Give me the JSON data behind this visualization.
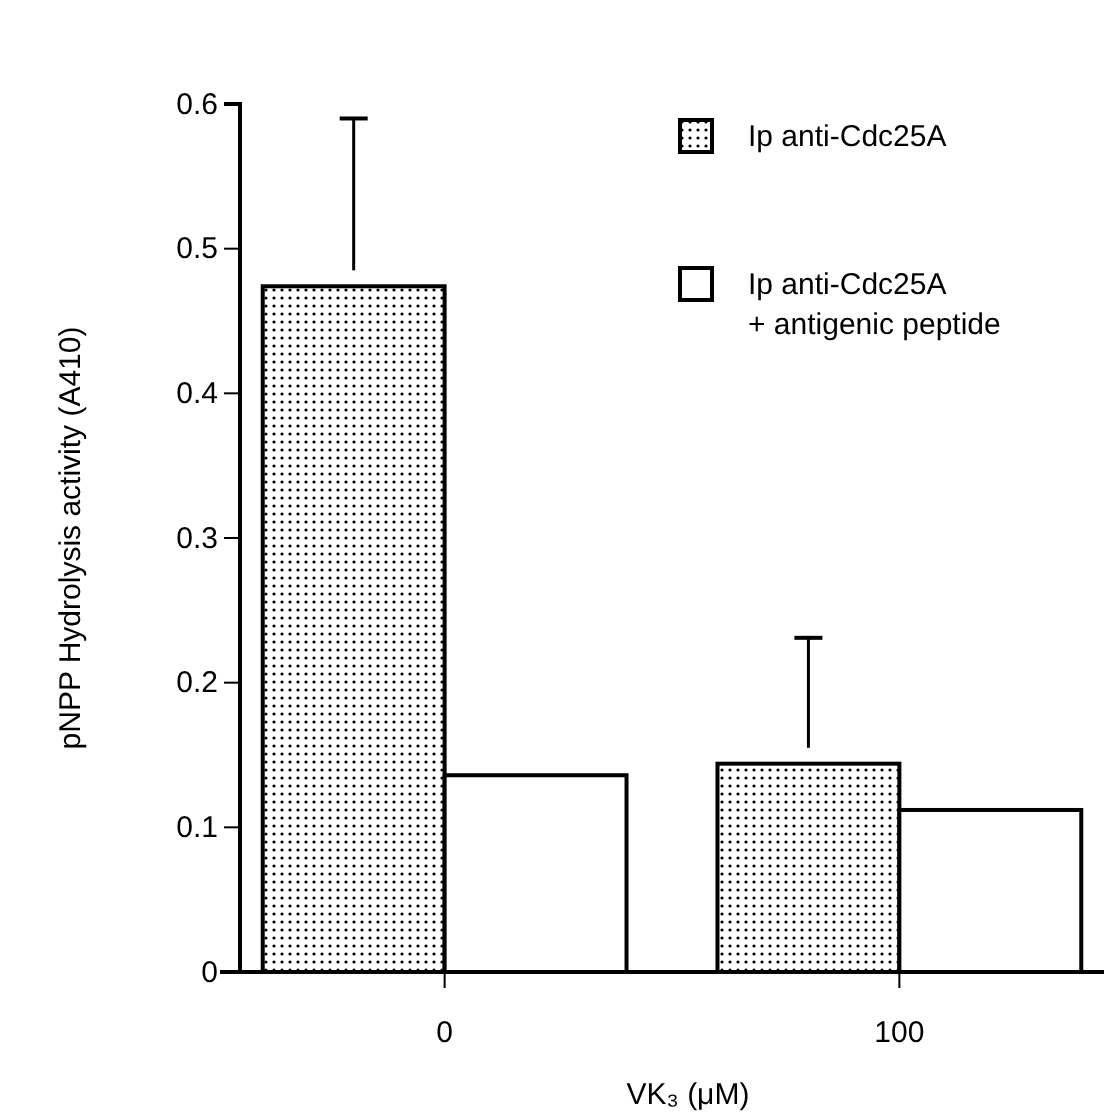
{
  "chart_data": {
    "type": "bar",
    "xlabel": "VK₃ (μM)",
    "ylabel": "pNPP Hydrolysis activity (A410)",
    "categories": [
      "0",
      "100"
    ],
    "series": [
      {
        "name": "Ip anti-Cdc25A",
        "color": "#000000",
        "values": [
          0.474,
          0.144
        ],
        "errors": [
          [
            0.485,
            0.59
          ],
          [
            0.155,
            0.231
          ]
        ]
      },
      {
        "name": "Ip anti-Cdc25A\n+ antigenic peptide",
        "color": "#ffffff",
        "values": [
          0.136,
          0.112
        ]
      }
    ],
    "ylim": [
      0,
      0.6
    ],
    "yticks": [
      0,
      0.1,
      0.2,
      0.3,
      0.4,
      0.5,
      0.6
    ],
    "grid": false,
    "legend": "top right"
  }
}
